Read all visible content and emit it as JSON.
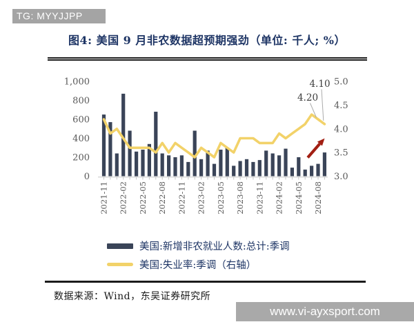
{
  "badge": {
    "text": "TG: MYYJJPP"
  },
  "figure": {
    "title": "图4: 美国 9 月非农数据超预期强劲（单位: 千人; %）"
  },
  "legend": {
    "items": [
      {
        "label": "美国:新增非农就业人数:总计:季调",
        "swatch": "bar",
        "color": "#3a4458"
      },
      {
        "label": "美国:失业率:季调（右轴）",
        "swatch": "line",
        "color": "#f2d269"
      }
    ]
  },
  "source": {
    "text": "数据来源：Wind，东吴证券研究所"
  },
  "watermark": {
    "text": "www.vi-ayxsport.com"
  },
  "chart_data": {
    "type": "bar",
    "title": "美国 9 月非农数据超预期强劲（单位: 千人; %）",
    "x": [
      "2021-11",
      "2021-12",
      "2022-01",
      "2022-02",
      "2022-03",
      "2022-04",
      "2022-05",
      "2022-06",
      "2022-07",
      "2022-08",
      "2022-09",
      "2022-10",
      "2022-11",
      "2022-12",
      "2023-01",
      "2023-02",
      "2023-03",
      "2023-04",
      "2023-05",
      "2023-06",
      "2023-07",
      "2023-08",
      "2023-09",
      "2023-10",
      "2023-11",
      "2023-12",
      "2024-01",
      "2024-02",
      "2024-03",
      "2024-04",
      "2024-05",
      "2024-06",
      "2024-07",
      "2024-08",
      "2024-09"
    ],
    "series": [
      {
        "name": "美国:新增非农就业人数:总计:季调",
        "type": "bar",
        "axis": "left",
        "values": [
          650,
          570,
          240,
          870,
          480,
          260,
          280,
          340,
          680,
          240,
          220,
          200,
          220,
          150,
          480,
          180,
          270,
          130,
          280,
          300,
          110,
          160,
          180,
          150,
          170,
          270,
          240,
          220,
          290,
          90,
          200,
          70,
          110,
          130,
          250
        ]
      },
      {
        "name": "美国:失业率:季调（右轴）",
        "type": "line",
        "axis": "right",
        "values": [
          4.2,
          3.9,
          4.0,
          3.8,
          3.6,
          3.6,
          3.6,
          3.6,
          3.5,
          3.7,
          3.5,
          3.7,
          3.6,
          3.5,
          3.4,
          3.6,
          3.5,
          3.4,
          3.7,
          3.6,
          3.5,
          3.8,
          3.8,
          3.8,
          3.7,
          3.7,
          3.7,
          3.9,
          3.8,
          3.9,
          4.0,
          4.1,
          4.3,
          4.2,
          4.1
        ]
      }
    ],
    "left_axis": {
      "ticks": [
        "1,000",
        "800",
        "600",
        "400",
        "200",
        "0"
      ],
      "range": [
        0,
        1000
      ]
    },
    "right_axis": {
      "ticks": [
        "5.0",
        "4.5",
        "4.0",
        "3.5",
        "3.0"
      ],
      "range": [
        3.0,
        5.0
      ]
    },
    "x_tick_labels": [
      "2021-11",
      "2022-02",
      "2022-05",
      "2022-08",
      "2022-11",
      "2023-02",
      "2023-05",
      "2023-08",
      "2023-11",
      "2024-02",
      "2024-05",
      "2024-08"
    ],
    "annotations": [
      {
        "text": "4.20",
        "points_to": "2024-08"
      },
      {
        "text": "4.10",
        "points_to": "2024-09"
      }
    ],
    "grid": "off",
    "legend_position": "bottom",
    "colors": {
      "bar": "#3a4458",
      "line": "#f2d269",
      "arrow": "#a21f13",
      "title": "#1e3565",
      "axis_text": "#595959",
      "leader": "#ababab"
    }
  }
}
